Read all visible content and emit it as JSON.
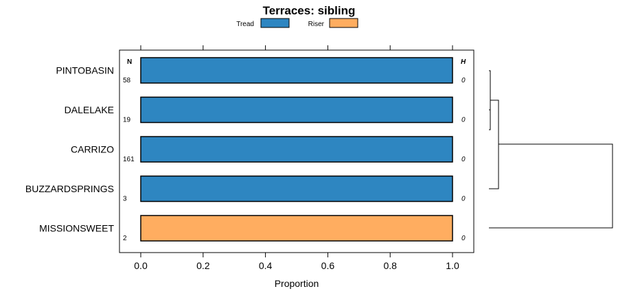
{
  "chart_data": {
    "type": "bar",
    "orientation": "horizontal",
    "stacked": true,
    "title": "Terraces: sibling",
    "xlabel": "Proportion",
    "ylabel": "",
    "xlim": [
      -0.07,
      1.07
    ],
    "x_ticks": [
      0.0,
      0.2,
      0.4,
      0.6,
      0.8,
      1.0
    ],
    "x_tick_labels": [
      "0.0",
      "0.2",
      "0.4",
      "0.6",
      "0.8",
      "1.0"
    ],
    "legend": [
      {
        "name": "Tread",
        "color": "#2e86c1"
      },
      {
        "name": "Riser",
        "color": "#ffad60"
      }
    ],
    "categories": [
      "PINTOBASIN",
      "DALELAKE",
      "CARRIZO",
      "BUZZARDSPRINGS",
      "MISSIONSWEET"
    ],
    "series": [
      {
        "name": "Tread",
        "values": [
          1.0,
          1.0,
          1.0,
          1.0,
          0.0
        ]
      },
      {
        "name": "Riser",
        "values": [
          0.0,
          0.0,
          0.0,
          0.0,
          1.0
        ]
      }
    ],
    "n_header": "N",
    "n_values": [
      "58",
      "19",
      "161",
      "3",
      "2"
    ],
    "h_header": "H",
    "h_values": [
      "0",
      "0",
      "0",
      "0",
      "0"
    ],
    "dendrogram": "clustering of categories shown at right"
  }
}
